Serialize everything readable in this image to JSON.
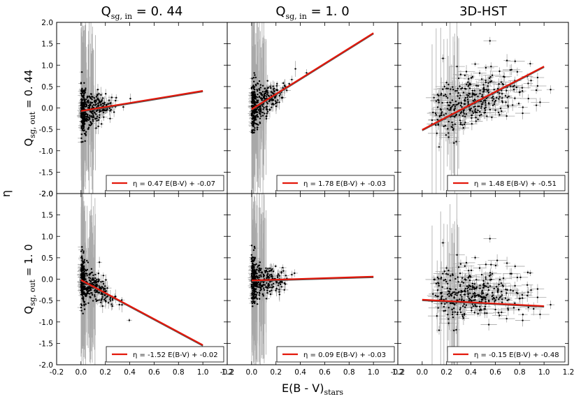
{
  "colors": {
    "fit_line": "#e3170a",
    "fit_shadow": "#555555",
    "points": "#000000",
    "errorbars": "#a8a8a8",
    "frame": "#000000"
  },
  "chart_data": {
    "type": "scatter",
    "grid": "2x3",
    "xlabel": {
      "main": "E(B - V)",
      "sub": "stars"
    },
    "ylabel": "η",
    "xlim": [
      -0.2,
      1.2
    ],
    "ylim": [
      -2.0,
      2.0
    ],
    "xticks": [
      -0.2,
      0.0,
      0.2,
      0.4,
      0.6,
      0.8,
      1.0,
      1.2
    ],
    "yticks": [
      -2.0,
      -1.5,
      -1.0,
      -0.5,
      0.0,
      0.5,
      1.0,
      1.5,
      2.0
    ],
    "column_titles": [
      {
        "main": "Q",
        "sub": "sg, in",
        "value": " = 0. 44"
      },
      {
        "main": "Q",
        "sub": "sg, in",
        "value": " = 1. 0"
      },
      {
        "main": "3D-HST",
        "sub": "",
        "value": ""
      }
    ],
    "row_labels": [
      {
        "main": "Q",
        "sub": "sg, out",
        "value": " = 0. 44"
      },
      {
        "main": "Q",
        "sub": "sg, out",
        "value": " = 1. 0"
      }
    ],
    "panels": [
      {
        "row": 0,
        "col": 0,
        "slope": 0.47,
        "intercept": -0.07,
        "fit_x": [
          0.0,
          1.0
        ],
        "legend": "η = 0.47 E(B-V) + -0.07",
        "legend_loc": "lower right"
      },
      {
        "row": 0,
        "col": 1,
        "slope": 1.78,
        "intercept": -0.03,
        "fit_x": [
          0.0,
          1.0
        ],
        "legend": "η = 1.78 E(B-V) + -0.03",
        "legend_loc": "lower right"
      },
      {
        "row": 0,
        "col": 2,
        "slope": 1.48,
        "intercept": -0.51,
        "fit_x": [
          0.0,
          1.0
        ],
        "legend": "η = 1.48 E(B-V) + -0.51",
        "legend_loc": "lower right"
      },
      {
        "row": 1,
        "col": 0,
        "slope": -1.52,
        "intercept": -0.02,
        "fit_x": [
          0.0,
          1.0
        ],
        "legend": "η = -1.52 E(B-V) + -0.02",
        "legend_loc": "lower right"
      },
      {
        "row": 1,
        "col": 1,
        "slope": 0.09,
        "intercept": -0.03,
        "fit_x": [
          0.0,
          1.0
        ],
        "legend": "η = 0.09 E(B-V) + -0.03",
        "legend_loc": "lower right"
      },
      {
        "row": 1,
        "col": 2,
        "slope": -0.15,
        "intercept": -0.48,
        "fit_x": [
          0.0,
          1.0
        ],
        "legend": "η = -0.15 E(B-V) + -0.48",
        "legend_loc": "lower right"
      }
    ]
  }
}
